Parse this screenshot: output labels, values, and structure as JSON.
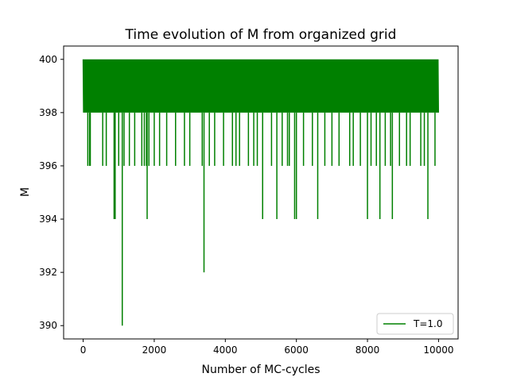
{
  "chart_data": {
    "type": "line",
    "title": "Time evolution of M from organized grid",
    "xlabel": "Number of MC-cycles",
    "ylabel": "M",
    "xlim": [
      -550,
      10550
    ],
    "ylim": [
      389.5,
      400.5
    ],
    "xticks": [
      0,
      2000,
      4000,
      6000,
      8000,
      10000
    ],
    "yticks": [
      390,
      392,
      394,
      396,
      398,
      400
    ],
    "grid": false,
    "legend_position": "lower-right",
    "series": [
      {
        "name": "T=1.0",
        "color": "#008000",
        "x_range": [
          0,
          10000
        ],
        "baseline_band": [
          398,
          400
        ],
        "dips": [
          {
            "x": 130,
            "y": 396
          },
          {
            "x": 180,
            "y": 396
          },
          {
            "x": 200,
            "y": 396
          },
          {
            "x": 550,
            "y": 396
          },
          {
            "x": 650,
            "y": 396
          },
          {
            "x": 870,
            "y": 394
          },
          {
            "x": 900,
            "y": 394
          },
          {
            "x": 1000,
            "y": 396
          },
          {
            "x": 1100,
            "y": 390
          },
          {
            "x": 1150,
            "y": 396
          },
          {
            "x": 1300,
            "y": 396
          },
          {
            "x": 1450,
            "y": 396
          },
          {
            "x": 1650,
            "y": 396
          },
          {
            "x": 1720,
            "y": 396
          },
          {
            "x": 1780,
            "y": 396
          },
          {
            "x": 1800,
            "y": 394
          },
          {
            "x": 1850,
            "y": 396
          },
          {
            "x": 2000,
            "y": 396
          },
          {
            "x": 2150,
            "y": 396
          },
          {
            "x": 2350,
            "y": 396
          },
          {
            "x": 2600,
            "y": 396
          },
          {
            "x": 2850,
            "y": 396
          },
          {
            "x": 3000,
            "y": 396
          },
          {
            "x": 3350,
            "y": 396
          },
          {
            "x": 3400,
            "y": 392
          },
          {
            "x": 3550,
            "y": 396
          },
          {
            "x": 3700,
            "y": 396
          },
          {
            "x": 3950,
            "y": 396
          },
          {
            "x": 4200,
            "y": 396
          },
          {
            "x": 4300,
            "y": 396
          },
          {
            "x": 4400,
            "y": 396
          },
          {
            "x": 4650,
            "y": 396
          },
          {
            "x": 4800,
            "y": 396
          },
          {
            "x": 4900,
            "y": 396
          },
          {
            "x": 5050,
            "y": 394
          },
          {
            "x": 5300,
            "y": 396
          },
          {
            "x": 5450,
            "y": 394
          },
          {
            "x": 5600,
            "y": 396
          },
          {
            "x": 5750,
            "y": 396
          },
          {
            "x": 5800,
            "y": 396
          },
          {
            "x": 5950,
            "y": 394
          },
          {
            "x": 6000,
            "y": 394
          },
          {
            "x": 6200,
            "y": 396
          },
          {
            "x": 6450,
            "y": 396
          },
          {
            "x": 6600,
            "y": 394
          },
          {
            "x": 6800,
            "y": 396
          },
          {
            "x": 7000,
            "y": 396
          },
          {
            "x": 7200,
            "y": 396
          },
          {
            "x": 7500,
            "y": 396
          },
          {
            "x": 7600,
            "y": 396
          },
          {
            "x": 7800,
            "y": 396
          },
          {
            "x": 8000,
            "y": 394
          },
          {
            "x": 8100,
            "y": 396
          },
          {
            "x": 8250,
            "y": 396
          },
          {
            "x": 8350,
            "y": 394
          },
          {
            "x": 8500,
            "y": 396
          },
          {
            "x": 8650,
            "y": 396
          },
          {
            "x": 8700,
            "y": 394
          },
          {
            "x": 8900,
            "y": 396
          },
          {
            "x": 9100,
            "y": 396
          },
          {
            "x": 9200,
            "y": 396
          },
          {
            "x": 9500,
            "y": 396
          },
          {
            "x": 9600,
            "y": 396
          },
          {
            "x": 9700,
            "y": 394
          },
          {
            "x": 9900,
            "y": 396
          }
        ]
      }
    ]
  }
}
